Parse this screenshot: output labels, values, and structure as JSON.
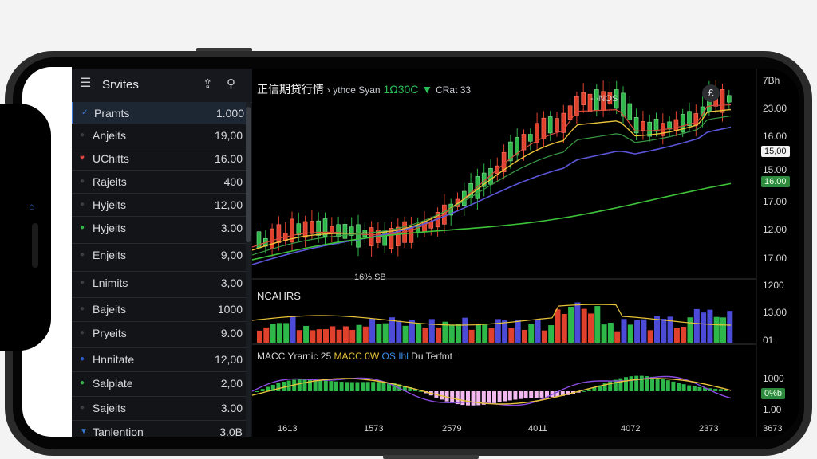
{
  "watchlist": {
    "title": "Srvites",
    "rows": [
      {
        "name": "Pramts",
        "value": "1.000",
        "marker": "check",
        "color": "#3a78d8"
      },
      {
        "name": "Anjeits",
        "value": "19,00",
        "marker": "dot",
        "color": "#3a3d43"
      },
      {
        "name": "UChitts",
        "value": "16.00",
        "marker": "heart",
        "color": "#e04444"
      },
      {
        "name": "Rajeits",
        "value": "400",
        "marker": "dot",
        "color": "#3a3d43"
      },
      {
        "name": "Hyjeits",
        "value": "12,00",
        "marker": "dot",
        "color": "#3a3d43"
      },
      {
        "name": "Hyjeits",
        "value": "3.00",
        "marker": "dot",
        "color": "#38b24a"
      },
      {
        "name": "Enjeits",
        "value": "9,00",
        "marker": "dot",
        "color": "#3a3d43"
      },
      {
        "name": "Lnimits",
        "value": "3,00",
        "marker": "dot",
        "color": "#3a3d43"
      },
      {
        "name": "Bajeits",
        "value": "1000",
        "marker": "dot",
        "color": "#3a3d43"
      },
      {
        "name": "Pryeits",
        "value": "9.00",
        "marker": "dot",
        "color": "#3a3d43"
      },
      {
        "name": "Hnnitate",
        "value": "12,00",
        "marker": "dot",
        "color": "#2f5fd0"
      },
      {
        "name": "Salplate",
        "value": "2,00",
        "marker": "dot",
        "color": "#38b24a"
      },
      {
        "name": "Sajeits",
        "value": "3.00",
        "marker": "dot",
        "color": "#3a3d43"
      },
      {
        "name": "Tanlention",
        "value": "3.0B",
        "marker": "triangle",
        "color": "#3a78d8"
      }
    ]
  },
  "chart": {
    "title_main": "正信期贷行情",
    "title_sub": "› ythce Syan",
    "title_price": "1Ω30C",
    "title_extra": "CRat 33",
    "top_right_label": "7Bh",
    "annotation_high": "- ·NOS",
    "annotation_low": "16% SB",
    "symbol_icon": "£",
    "volume_label": "NCAHRS",
    "macd_label_1": "MACC Yrarnic 25",
    "macd_label_2": "MACC 0W",
    "macd_label_3": "OS",
    "macd_label_4": "Ihl",
    "macd_label_5": "Du Terfmt '",
    "price_axis": [
      "23.00",
      "16.00",
      "15.00",
      "17.00",
      "12.00",
      "17.00",
      "1200",
      "13.00",
      "01",
      "1000",
      "1.00"
    ],
    "price_tag_white": "15,00",
    "price_tag_green": "16.00",
    "price_tag_macd": "0%b",
    "time_axis": [
      "1613",
      "1573",
      "2579",
      "4011",
      "4072",
      "2373",
      "3673"
    ],
    "colors": {
      "up": "#2fb84a",
      "down": "#e0412c",
      "ma_fast": "#e9c23b",
      "ma_mid": "#3a9a44",
      "ma_slow": "#5b56d8",
      "ma_long": "#3ec23a"
    }
  }
}
